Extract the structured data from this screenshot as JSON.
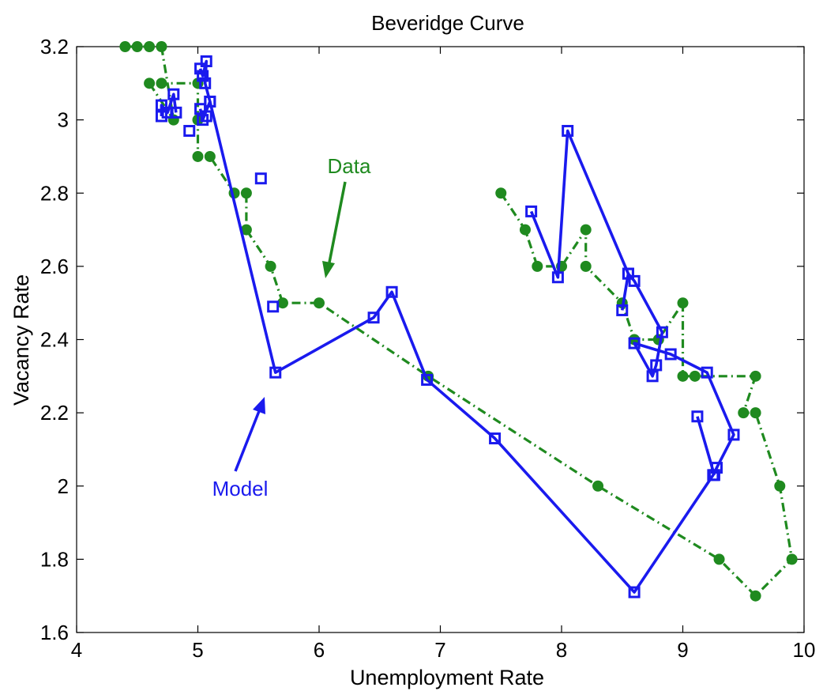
{
  "chart_data": {
    "type": "line",
    "title": "Beveridge Curve",
    "xlabel": "Unemployment Rate",
    "ylabel": "Vacancy Rate",
    "xlim": [
      4,
      10
    ],
    "ylim": [
      1.6,
      3.2
    ],
    "xticks": [
      "4",
      "5",
      "6",
      "7",
      "8",
      "9",
      "10"
    ],
    "yticks": [
      "1.6",
      "1.8",
      "2",
      "2.2",
      "2.4",
      "2.6",
      "2.8",
      "3",
      "3.2"
    ],
    "grid": false,
    "series": [
      {
        "color": "#1f8a1f",
        "marker": "circle",
        "line_style": "dash-dot",
        "points": [
          [
            4.4,
            3.2
          ],
          [
            4.5,
            3.2
          ],
          [
            4.6,
            3.2
          ],
          [
            4.7,
            3.2
          ],
          [
            4.8,
            3.0
          ],
          [
            4.6,
            3.1
          ],
          [
            4.7,
            3.1
          ],
          [
            5.0,
            3.1
          ],
          [
            5.0,
            3.0
          ],
          [
            5.0,
            2.9
          ],
          [
            5.1,
            2.9
          ],
          [
            5.3,
            2.8
          ],
          [
            5.4,
            2.8
          ],
          [
            5.4,
            2.7
          ],
          [
            5.6,
            2.6
          ],
          [
            5.7,
            2.5
          ],
          [
            6.0,
            2.5
          ],
          [
            6.9,
            2.3
          ],
          [
            8.3,
            2.0
          ],
          [
            9.3,
            1.8
          ],
          [
            9.6,
            1.7
          ],
          [
            9.9,
            1.8
          ],
          [
            9.8,
            2.0
          ],
          [
            9.6,
            2.2
          ],
          [
            9.5,
            2.2
          ],
          [
            9.6,
            2.3
          ],
          [
            9.1,
            2.3
          ],
          [
            9.0,
            2.3
          ],
          [
            9.0,
            2.5
          ],
          [
            8.8,
            2.4
          ],
          [
            8.6,
            2.4
          ],
          [
            8.5,
            2.5
          ],
          [
            8.2,
            2.6
          ],
          [
            8.2,
            2.7
          ],
          [
            8.0,
            2.6
          ],
          [
            7.8,
            2.6
          ],
          [
            7.7,
            2.7
          ],
          [
            7.5,
            2.8
          ]
        ]
      },
      {
        "color": "#1a1aee",
        "marker": "square",
        "line_style": "solid",
        "segments": [
          [
            [
              4.7,
              3.01
            ],
            [
              4.7,
              3.04
            ],
            [
              4.75,
              3.02
            ],
            [
              4.8,
              3.07
            ],
            [
              4.82,
              3.02
            ]
          ],
          [
            [
              5.02,
              3.14
            ],
            [
              5.04,
              3.12
            ],
            [
              5.07,
              3.16
            ],
            [
              5.06,
              3.1
            ],
            [
              5.1,
              3.05
            ],
            [
              5.04,
              3.0
            ],
            [
              5.02,
              3.03
            ]
          ],
          [
            [
              5.1,
              3.05
            ],
            [
              5.64,
              2.31
            ],
            [
              6.45,
              2.46
            ],
            [
              6.6,
              2.53
            ],
            [
              6.89,
              2.29
            ],
            [
              7.45,
              2.13
            ],
            [
              8.6,
              1.71
            ],
            [
              9.25,
              2.03
            ],
            [
              9.28,
              2.05
            ],
            [
              9.42,
              2.14
            ],
            [
              9.2,
              2.31
            ],
            [
              8.9,
              2.36
            ],
            [
              8.6,
              2.39
            ],
            [
              8.75,
              2.3
            ],
            [
              8.78,
              2.33
            ],
            [
              8.83,
              2.42
            ],
            [
              8.6,
              2.56
            ],
            [
              8.55,
              2.58
            ],
            [
              8.5,
              2.48
            ]
          ],
          [
            [
              8.55,
              2.58
            ],
            [
              8.05,
              2.97
            ],
            [
              7.97,
              2.57
            ],
            [
              7.75,
              2.75
            ]
          ],
          [
            [
              9.12,
              2.19
            ],
            [
              9.26,
              2.03
            ]
          ]
        ],
        "markers_only": [
          [
            4.93,
            2.97
          ],
          [
            5.52,
            2.84
          ],
          [
            5.62,
            2.49
          ],
          [
            5.07,
            3.01
          ]
        ]
      }
    ],
    "annotations": [
      {
        "text": "Data",
        "color": "#1f8a1f"
      },
      {
        "text": "Model",
        "color": "#1a1aee"
      }
    ]
  }
}
